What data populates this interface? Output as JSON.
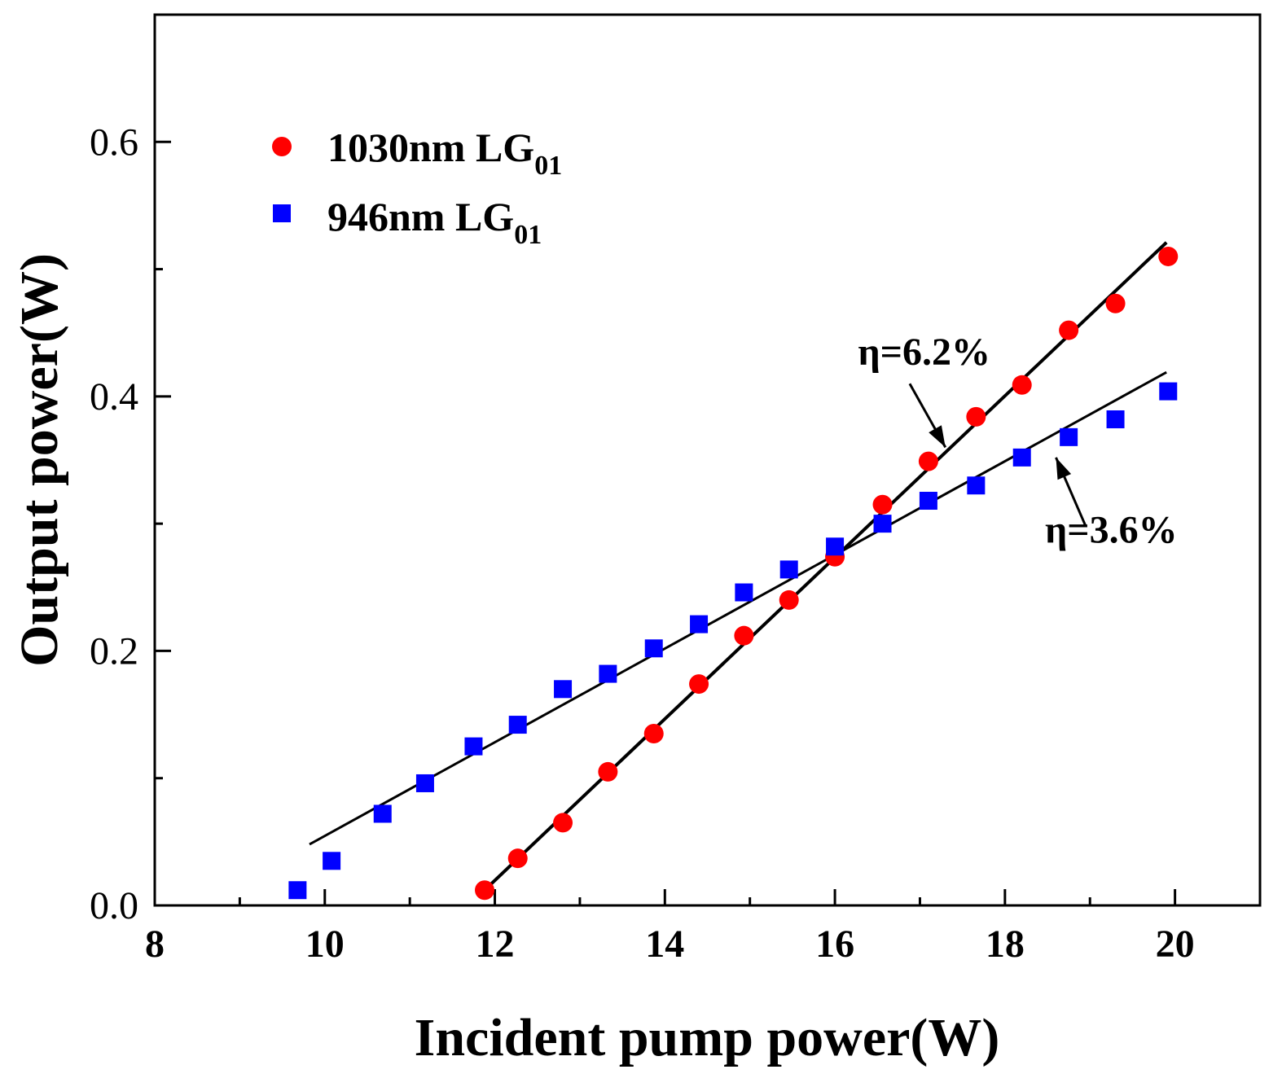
{
  "chart_data": {
    "type": "scatter",
    "xlabel": "Incident pump power(W)",
    "ylabel": "Output power(W)",
    "xlim": [
      8,
      21
    ],
    "ylim": [
      0,
      0.7
    ],
    "x_ticks": [
      8,
      10,
      12,
      14,
      16,
      18,
      20
    ],
    "x_tick_labels": [
      "8",
      "10",
      "12",
      "14",
      "16",
      "18",
      "20"
    ],
    "y_ticks": [
      0.0,
      0.2,
      0.4,
      0.6
    ],
    "y_tick_labels": [
      "0.0",
      "0.2",
      "0.4",
      "0.6"
    ],
    "legend_position": "top-left",
    "series": [
      {
        "name": "1030nm LG01",
        "label_main": "1030nm LG",
        "label_sub": "01",
        "marker": "circle",
        "color": "#ff0000",
        "x": [
          11.88,
          12.27,
          12.8,
          13.33,
          13.87,
          14.4,
          14.93,
          15.46,
          16.0,
          16.56,
          17.1,
          17.66,
          18.2,
          18.75,
          19.3,
          19.92
        ],
        "y": [
          0.012,
          0.037,
          0.065,
          0.105,
          0.135,
          0.174,
          0.212,
          0.24,
          0.274,
          0.315,
          0.349,
          0.384,
          0.409,
          0.452,
          0.473,
          0.51
        ],
        "fit": {
          "x": [
            11.88,
            19.9
          ],
          "y": [
            0.012,
            0.521
          ]
        }
      },
      {
        "name": "946nm LG01",
        "label_main": "946nm LG",
        "label_sub": "01",
        "marker": "square",
        "color": "#0000ff",
        "x": [
          9.68,
          10.08,
          10.68,
          11.18,
          11.75,
          12.27,
          12.8,
          13.33,
          13.87,
          14.4,
          14.93,
          15.46,
          16.0,
          16.56,
          17.1,
          17.66,
          18.2,
          18.75,
          19.3,
          19.92
        ],
        "y": [
          0.012,
          0.035,
          0.072,
          0.096,
          0.125,
          0.142,
          0.17,
          0.182,
          0.202,
          0.221,
          0.246,
          0.264,
          0.282,
          0.3,
          0.318,
          0.33,
          0.352,
          0.368,
          0.382,
          0.404
        ],
        "fit": {
          "x": [
            9.82,
            19.9
          ],
          "y": [
            0.048,
            0.419
          ]
        }
      }
    ],
    "annotations": [
      {
        "text": "η=6.2%",
        "x": 17.05,
        "y": 0.425,
        "arrow_from": [
          16.88,
          0.41
        ],
        "arrow_to": [
          17.3,
          0.36
        ]
      },
      {
        "text": "η=3.6%",
        "x": 19.25,
        "y": 0.285,
        "arrow_from": [
          18.95,
          0.298
        ],
        "arrow_to": [
          18.6,
          0.352
        ]
      }
    ]
  }
}
